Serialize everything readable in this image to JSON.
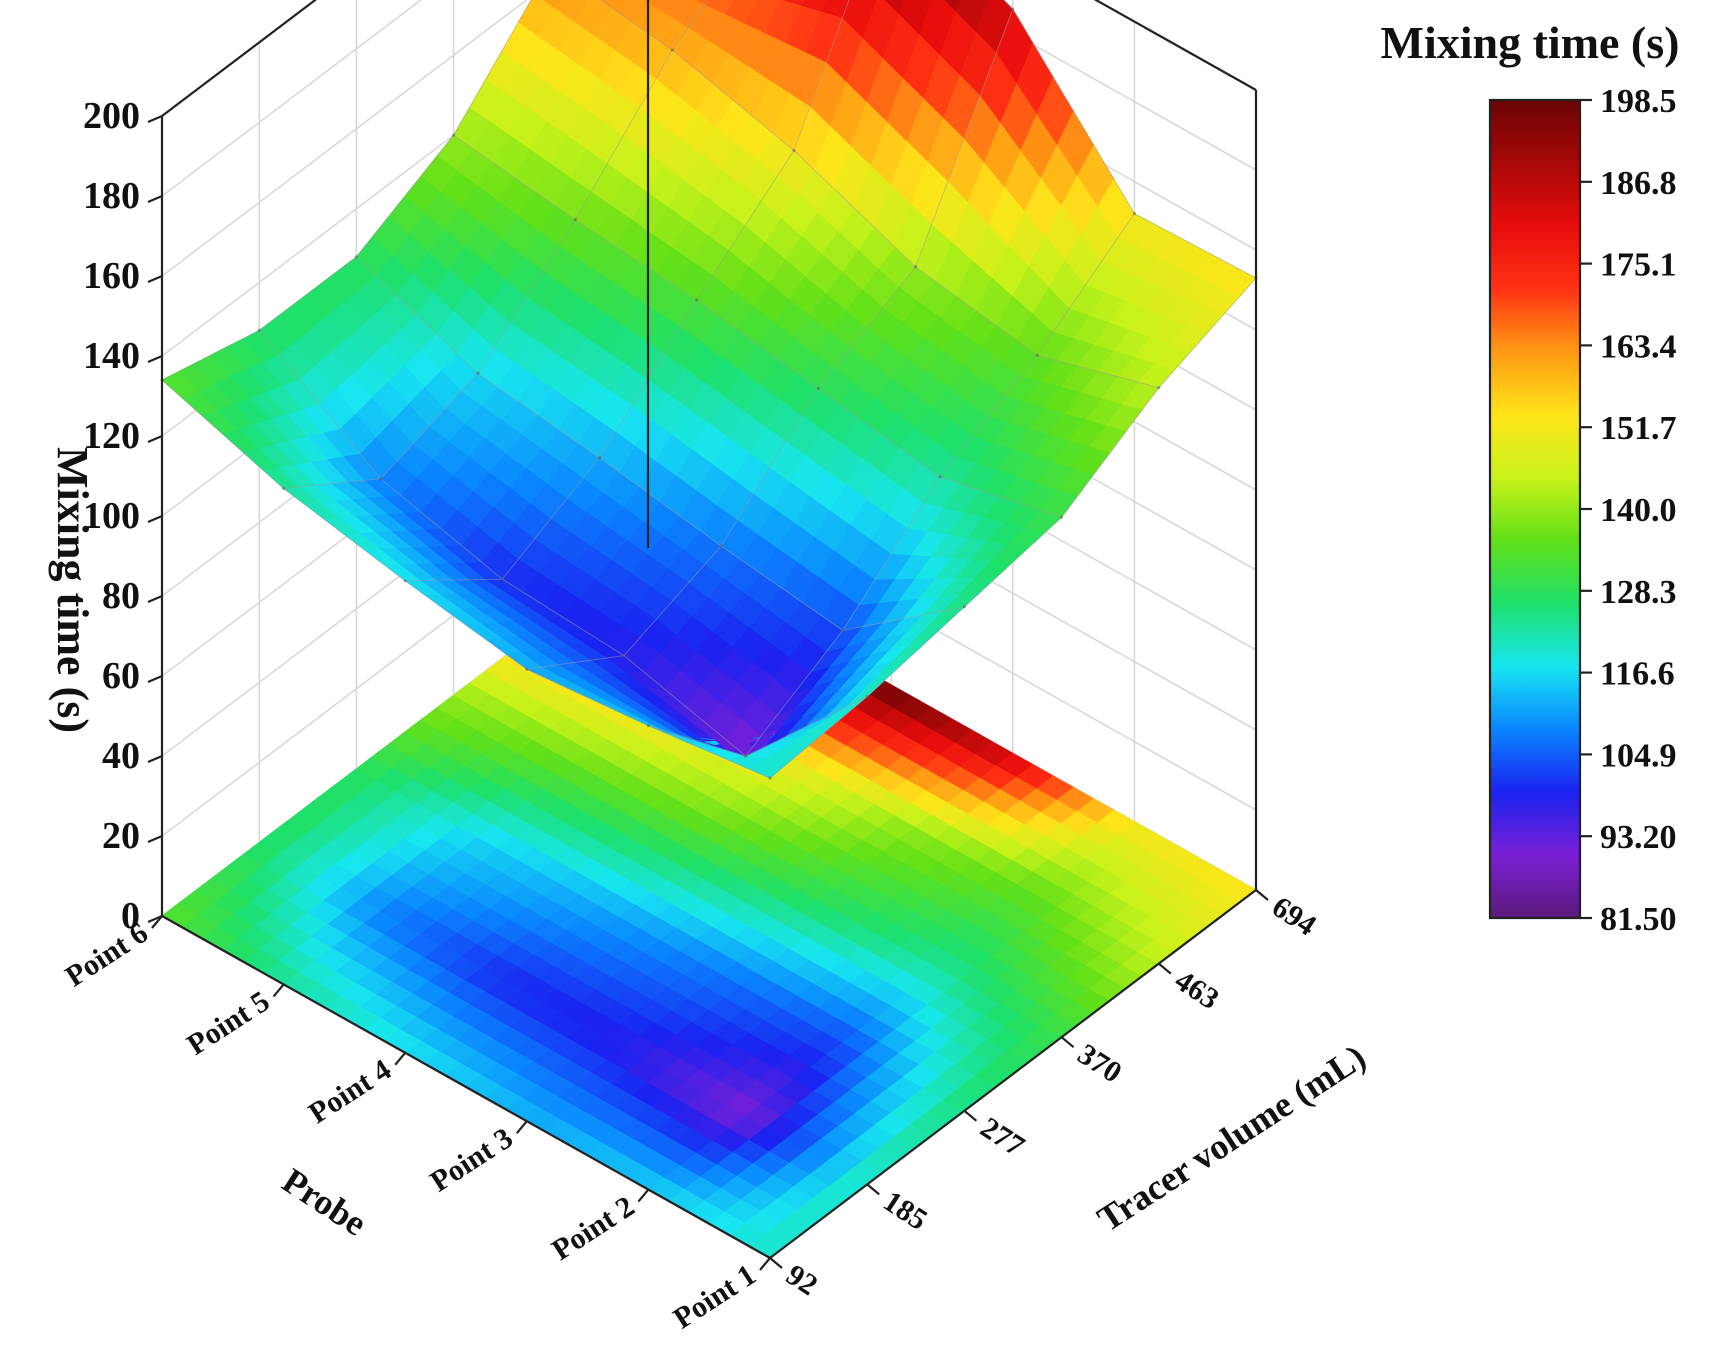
{
  "chart_data": {
    "type": "surface3d",
    "colorbar_title": "Mixing time (s)",
    "zlabel": "Mixing time (s)",
    "xlabel": "Probe",
    "ylabel": "Tracer volume (mL)",
    "x_categories": [
      "Point 1",
      "Point 2",
      "Point 3",
      "Point 4",
      "Point 5",
      "Point 6"
    ],
    "y_ticks": [
      "92",
      "185",
      "277",
      "370",
      "463",
      "694"
    ],
    "y_values": [
      92,
      185,
      277,
      370,
      463,
      694
    ],
    "z_ticks": [
      "0",
      "20",
      "40",
      "60",
      "80",
      "100",
      "120",
      "140",
      "160",
      "180",
      "200"
    ],
    "zlim": [
      0,
      200
    ],
    "colorbar_ticks": [
      "198.5",
      "186.8",
      "175.1",
      "163.4",
      "151.7",
      "140.0",
      "128.3",
      "116.6",
      "104.9",
      "93.20",
      "81.50"
    ],
    "colorbar_range": [
      81.5,
      198.5
    ],
    "colors": [
      "#5b1a7a",
      "#7a1fd6",
      "#1a22f0",
      "#0a86ff",
      "#18e6f0",
      "#1ee06a",
      "#62e018",
      "#c8f21a",
      "#ffe41a",
      "#ff9a14",
      "#ff3214",
      "#e80c0c",
      "#a80808",
      "#6b0404"
    ],
    "z_values_by_probe": [
      [
        120,
        122,
        126,
        130,
        144,
        153
      ],
      [
        116,
        90,
        103,
        123,
        135,
        152
      ],
      [
        113,
        98,
        107,
        128,
        140,
        186
      ],
      [
        118,
        100,
        112,
        133,
        152,
        200
      ],
      [
        124,
        108,
        116,
        136,
        160,
        176
      ],
      [
        134,
        128,
        128,
        140,
        164,
        163
      ]
    ]
  }
}
